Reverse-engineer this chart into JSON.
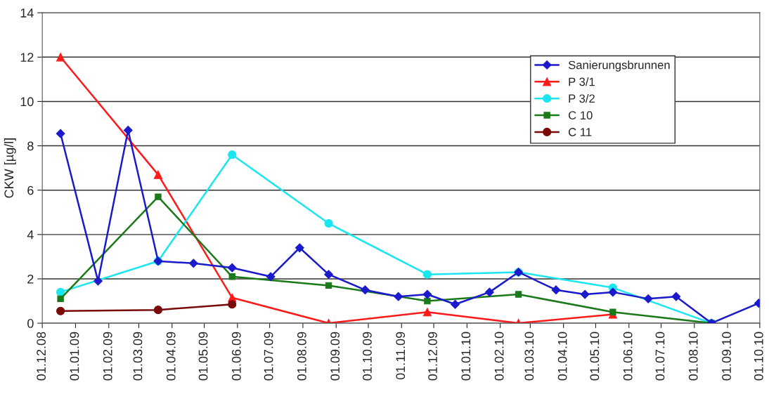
{
  "chart_data": {
    "type": "line",
    "ylabel": "CKW [µg/l]",
    "xlim": [
      "2008-12-01",
      "2010-10-01"
    ],
    "xticks": [
      {
        "value": "2008-12-01",
        "label": "01.12.08"
      },
      {
        "value": "2009-01-01",
        "label": "01.01.09"
      },
      {
        "value": "2009-02-01",
        "label": "01.02.09"
      },
      {
        "value": "2009-03-01",
        "label": "01.03.09"
      },
      {
        "value": "2009-04-01",
        "label": "01.04.09"
      },
      {
        "value": "2009-05-01",
        "label": "01.05.09"
      },
      {
        "value": "2009-06-01",
        "label": "01.06.09"
      },
      {
        "value": "2009-07-01",
        "label": "01.07.09"
      },
      {
        "value": "2009-08-01",
        "label": "01.08.09"
      },
      {
        "value": "2009-09-01",
        "label": "01.09.09"
      },
      {
        "value": "2009-10-01",
        "label": "01.10.09"
      },
      {
        "value": "2009-11-01",
        "label": "01.11.09"
      },
      {
        "value": "2009-12-01",
        "label": "01.12.09"
      },
      {
        "value": "2010-01-01",
        "label": "01.01.10"
      },
      {
        "value": "2010-02-01",
        "label": "01.02.10"
      },
      {
        "value": "2010-03-01",
        "label": "01.03.10"
      },
      {
        "value": "2010-04-01",
        "label": "01.04.10"
      },
      {
        "value": "2010-05-01",
        "label": "01.05.10"
      },
      {
        "value": "2010-06-01",
        "label": "01.06.10"
      },
      {
        "value": "2010-07-01",
        "label": "01.07.10"
      },
      {
        "value": "2010-08-01",
        "label": "01.08.10"
      },
      {
        "value": "2010-09-01",
        "label": "01.09.10"
      },
      {
        "value": "2010-10-01",
        "label": "01.10.10"
      }
    ],
    "ylim": [
      0,
      14
    ],
    "yticks": [
      0,
      2,
      4,
      6,
      8,
      10,
      12,
      14
    ],
    "grid": "y",
    "legend": "top right",
    "series": [
      {
        "name": "Sanierungsbrunnen",
        "color": "#1a1acc",
        "marker": "diamond",
        "x": [
          "2008-12-18",
          "2009-01-22",
          "2009-02-19",
          "2009-03-19",
          "2009-04-21",
          "2009-05-27",
          "2009-07-02",
          "2009-07-29",
          "2009-08-25",
          "2009-09-28",
          "2009-10-29",
          "2009-11-25",
          "2009-12-21",
          "2010-01-22",
          "2010-02-18",
          "2010-03-25",
          "2010-04-21",
          "2010-05-17",
          "2010-06-19",
          "2010-07-15",
          "2010-08-17",
          "2010-09-30"
        ],
        "values": [
          8.55,
          1.9,
          8.7,
          2.8,
          2.7,
          2.5,
          2.1,
          3.4,
          2.2,
          1.5,
          1.2,
          1.3,
          0.85,
          1.4,
          2.3,
          1.5,
          1.3,
          1.4,
          1.1,
          1.2,
          0,
          0.9
        ]
      },
      {
        "name": "P 3/1",
        "color": "#ff1a1a",
        "marker": "triangle",
        "x": [
          "2008-12-18",
          "2009-03-19",
          "2009-05-27",
          "2009-08-25",
          "2009-11-25",
          "2010-02-18",
          "2010-05-17"
        ],
        "values": [
          12,
          6.7,
          1.15,
          0,
          0.5,
          0,
          0.4
        ]
      },
      {
        "name": "P 3/2",
        "color": "#1ae6f0",
        "marker": "circle",
        "x": [
          "2008-12-18",
          "2009-03-19",
          "2009-05-27",
          "2009-08-25",
          "2009-11-25",
          "2010-02-18",
          "2010-05-17",
          "2010-08-17"
        ],
        "values": [
          1.4,
          2.8,
          7.6,
          4.5,
          2.2,
          2.3,
          1.6,
          0
        ]
      },
      {
        "name": "C 10",
        "color": "#1a7a1a",
        "marker": "square",
        "x": [
          "2008-12-18",
          "2009-03-19",
          "2009-05-27",
          "2009-08-25",
          "2009-11-25",
          "2010-02-18",
          "2010-05-17",
          "2010-08-17"
        ],
        "values": [
          1.1,
          5.7,
          2.1,
          1.7,
          1.0,
          1.3,
          0.5,
          0
        ]
      },
      {
        "name": "C 11",
        "color": "#7a0a0a",
        "marker": "circle",
        "x": [
          "2008-12-18",
          "2009-03-19",
          "2009-05-27"
        ],
        "values": [
          0.55,
          0.6,
          0.85
        ]
      }
    ]
  }
}
